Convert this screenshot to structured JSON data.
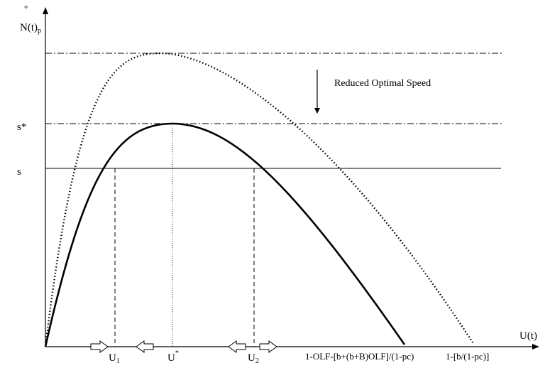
{
  "y_axis": {
    "degree_mark": "°",
    "label_main": "N(t)",
    "label_sub": "p"
  },
  "x_axis": {
    "label": "U(t)"
  },
  "levels": {
    "s_star": "s*",
    "s": "s"
  },
  "annotation": "Reduced Optimal Speed",
  "points": {
    "u1_main": "U",
    "u1_sub": "1",
    "u_star_main": "U",
    "u_star_sup": "*",
    "u2_main": "U",
    "u2_sub": "2"
  },
  "roots": {
    "reduced": "1-OLF-[b+(b+B)OLF]/(1-pc)",
    "original": "1-[b/(1-pc)]"
  },
  "colors": {
    "ink": "#000000",
    "background": "#ffffff"
  }
}
